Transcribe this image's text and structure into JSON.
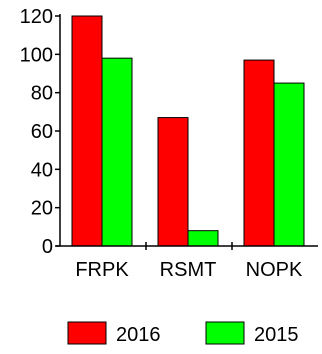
{
  "chart_data": {
    "type": "bar",
    "categories": [
      "FRPK",
      "RSMT",
      "NOPK"
    ],
    "series": [
      {
        "name": "2016",
        "values": [
          120,
          67,
          97
        ],
        "color": "#ff0000"
      },
      {
        "name": "2015",
        "values": [
          98,
          8,
          85
        ],
        "color": "#00ff00"
      }
    ],
    "ylim": [
      0,
      120
    ],
    "yticks": [
      "0",
      "20",
      "40",
      "60",
      "80",
      "100",
      "120"
    ],
    "title": "",
    "xlabel": "",
    "ylabel": "",
    "grid": false,
    "legend_position": "bottom"
  }
}
